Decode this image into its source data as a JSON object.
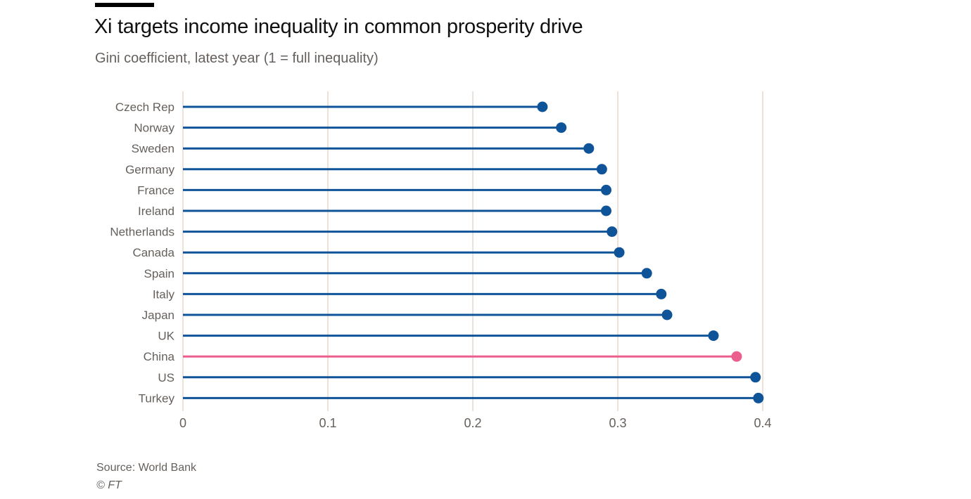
{
  "colors": {
    "series": "#0f5499",
    "highlight": "#eb5e8d",
    "grid": "#e6d9ce",
    "text": "#66605c",
    "title": "#111111"
  },
  "footer": {
    "source": "Source: World Bank",
    "copyright": "© FT"
  },
  "chart_data": {
    "type": "lollipop",
    "title": "Xi targets income inequality in common prosperity drive",
    "subtitle": "Gini coefficient, latest year (1 = full inequality)",
    "xlabel": "",
    "ylabel": "",
    "xlim": [
      0,
      0.4
    ],
    "xticks": [
      0,
      0.1,
      0.2,
      0.3,
      0.4
    ],
    "xtick_labels": [
      "0",
      "0.1",
      "0.2",
      "0.3",
      "0.4"
    ],
    "grid": true,
    "highlight": "China",
    "categories": [
      "Czech Rep",
      "Norway",
      "Sweden",
      "Germany",
      "France",
      "Ireland",
      "Netherlands",
      "Canada",
      "Spain",
      "Italy",
      "Japan",
      "UK",
      "China",
      "US",
      "Turkey"
    ],
    "values": [
      0.248,
      0.261,
      0.28,
      0.289,
      0.292,
      0.292,
      0.296,
      0.301,
      0.32,
      0.33,
      0.334,
      0.366,
      0.382,
      0.395,
      0.397
    ]
  }
}
